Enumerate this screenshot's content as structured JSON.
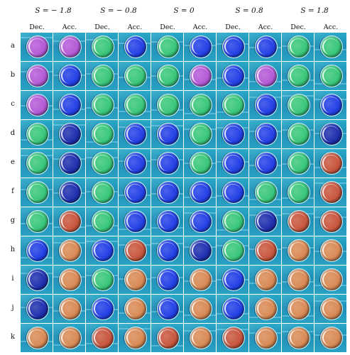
{
  "column_groups": [
    {
      "label": "S = − 1.8"
    },
    {
      "label": "S = − 0.8"
    },
    {
      "label": "S = 0"
    },
    {
      "label": "S = 0.8"
    },
    {
      "label": "S = 1.8"
    }
  ],
  "sub_columns": [
    "Dec.",
    "Acc."
  ],
  "rows": [
    "a",
    "b",
    "c",
    "d",
    "e",
    "f",
    "g",
    "h",
    "i",
    "j",
    "k"
  ],
  "colors": {
    "B": "#2340e6",
    "N": "#1f2fae",
    "G": "#39c77a",
    "M": "#b45ad6",
    "P": "#d0509e",
    "R": "#c8563e",
    "O": "#d98a55",
    "C": "#4fb3c9"
  },
  "cell_colors": [
    [
      "MM",
      "GB",
      "GB",
      "BB",
      "GG"
    ],
    [
      "MB",
      "GG",
      "GM",
      "BM",
      "GG"
    ],
    [
      "MB",
      "GG",
      "GG",
      "GB",
      "GB"
    ],
    [
      "GN",
      "GB",
      "BG",
      "BB",
      "GN"
    ],
    [
      "GN",
      "GB",
      "BG",
      "BB",
      "GR"
    ],
    [
      "GN",
      "GB",
      "BB",
      "BG",
      "GR"
    ],
    [
      "GR",
      "GB",
      "BB",
      "GN",
      "RR"
    ],
    [
      "BO",
      "BR",
      "BN",
      "GR",
      "OO"
    ],
    [
      "NO",
      "GO",
      "BO",
      "BO",
      "OO"
    ],
    [
      "NO",
      "BO",
      "BO",
      "BO",
      "OO"
    ],
    [
      "OO",
      "RO",
      "RO",
      "RO",
      "OO"
    ]
  ]
}
